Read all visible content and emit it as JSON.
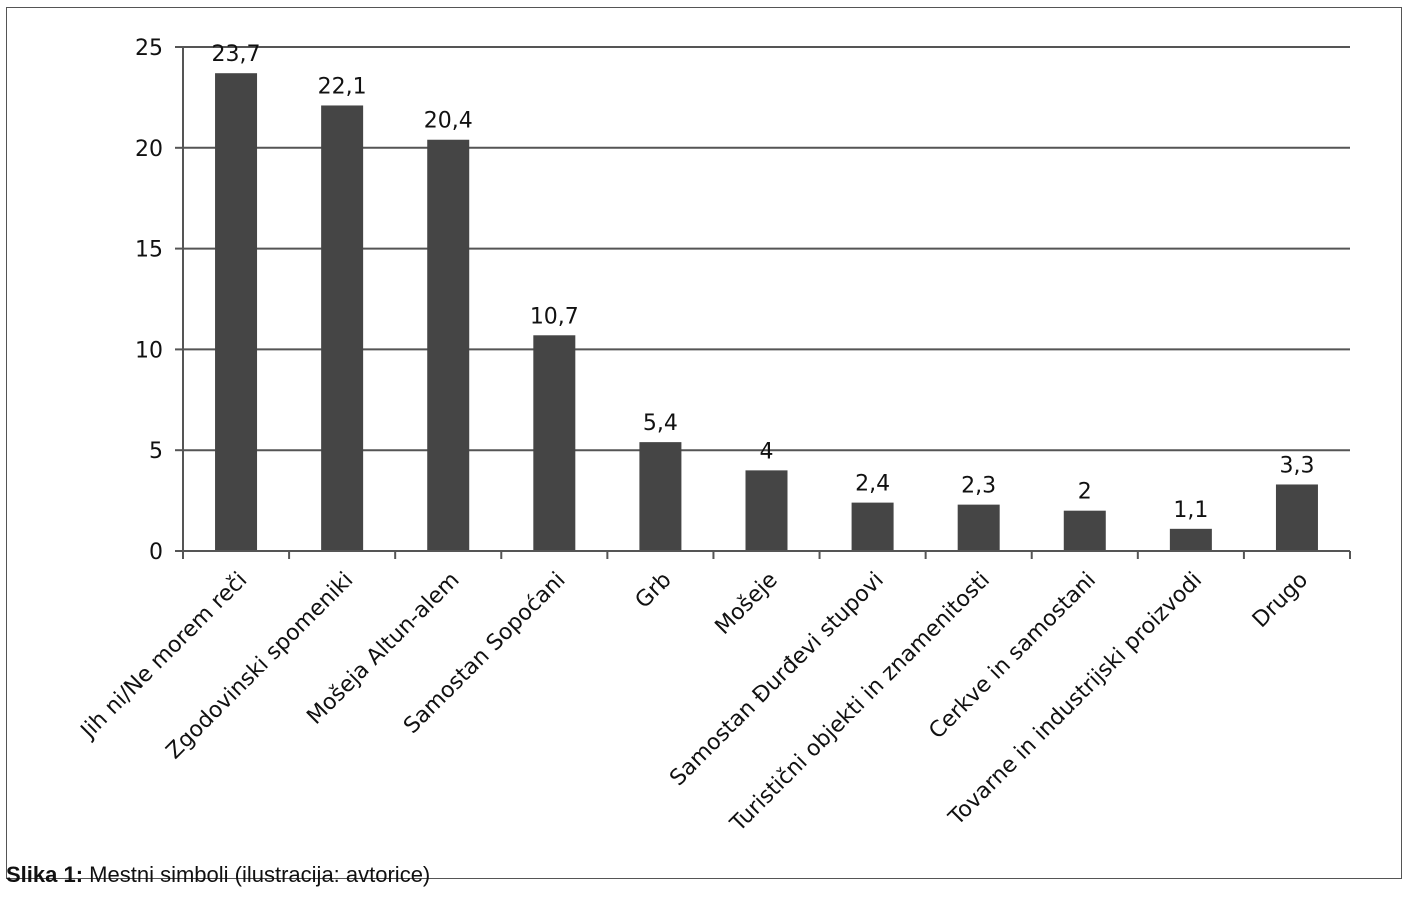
{
  "caption": {
    "prefix": "Slika 1:",
    "text": "Mestni simboli (ilustracija: avtorice)"
  },
  "chart_data": {
    "type": "bar",
    "categories": [
      "Jih ni/Ne morem reči",
      "Zgodovinski spomeniki",
      "Mošeja Altun-alem",
      "Samostan Sopoćani",
      "Grb",
      "Mošeje",
      "Samostan Đurđevi stupovi",
      "Turistični objekti in znamenitosti",
      "Cerkve in samostani",
      "Tovarne in industrijski proizvodi",
      "Drugo"
    ],
    "values": [
      23.7,
      22.1,
      20.4,
      10.7,
      5.4,
      4,
      2.4,
      2.3,
      2,
      1.1,
      3.3
    ],
    "value_labels": [
      "23,7",
      "22,1",
      "20,4",
      "10,7",
      "5,4",
      "4",
      "2,4",
      "2,3",
      "2",
      "1,1",
      "3,3"
    ],
    "y_ticks": [
      0,
      5,
      10,
      15,
      20,
      25
    ],
    "y_tick_labels": [
      "0",
      "5",
      "10",
      "15",
      "20",
      "25"
    ],
    "ylim": [
      0,
      25
    ],
    "grid": true,
    "bar_color": "#454545",
    "grid_color": "#555555"
  }
}
